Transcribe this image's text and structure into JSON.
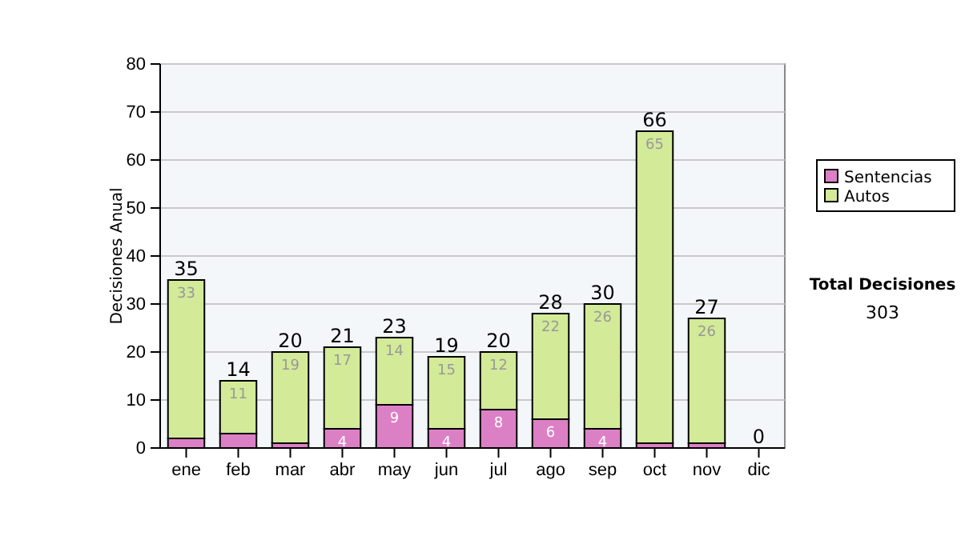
{
  "chart_data": {
    "type": "bar",
    "stacked": true,
    "ylabel": "Decisiones Anual",
    "categories": [
      "ene",
      "feb",
      "mar",
      "abr",
      "may",
      "jun",
      "jul",
      "ago",
      "sep",
      "oct",
      "nov",
      "dic"
    ],
    "series": [
      {
        "name": "Sentencias",
        "color": "#dc80c6",
        "values": [
          2,
          3,
          1,
          4,
          9,
          4,
          8,
          6,
          4,
          1,
          1,
          0
        ],
        "value_labels": [
          null,
          null,
          null,
          "4",
          "9",
          "4",
          "8",
          "6",
          "4",
          null,
          null,
          null
        ]
      },
      {
        "name": "Autos",
        "color": "#d3ea98",
        "values": [
          33,
          11,
          19,
          17,
          14,
          15,
          12,
          22,
          26,
          65,
          26,
          0
        ],
        "value_labels": [
          "33",
          "11",
          "19",
          "17",
          "14",
          "15",
          "12",
          "22",
          "26",
          "65",
          "26",
          null
        ]
      }
    ],
    "totals": [
      "35",
      "14",
      "20",
      "21",
      "23",
      "19",
      "20",
      "28",
      "30",
      "66",
      "27",
      "0"
    ],
    "ylim": [
      0,
      80
    ],
    "yticks": [
      0,
      10,
      20,
      30,
      40,
      50,
      60,
      70,
      80
    ],
    "grid": "y",
    "legend": "right",
    "annotations": [
      "Total Decisiones",
      "303"
    ]
  }
}
